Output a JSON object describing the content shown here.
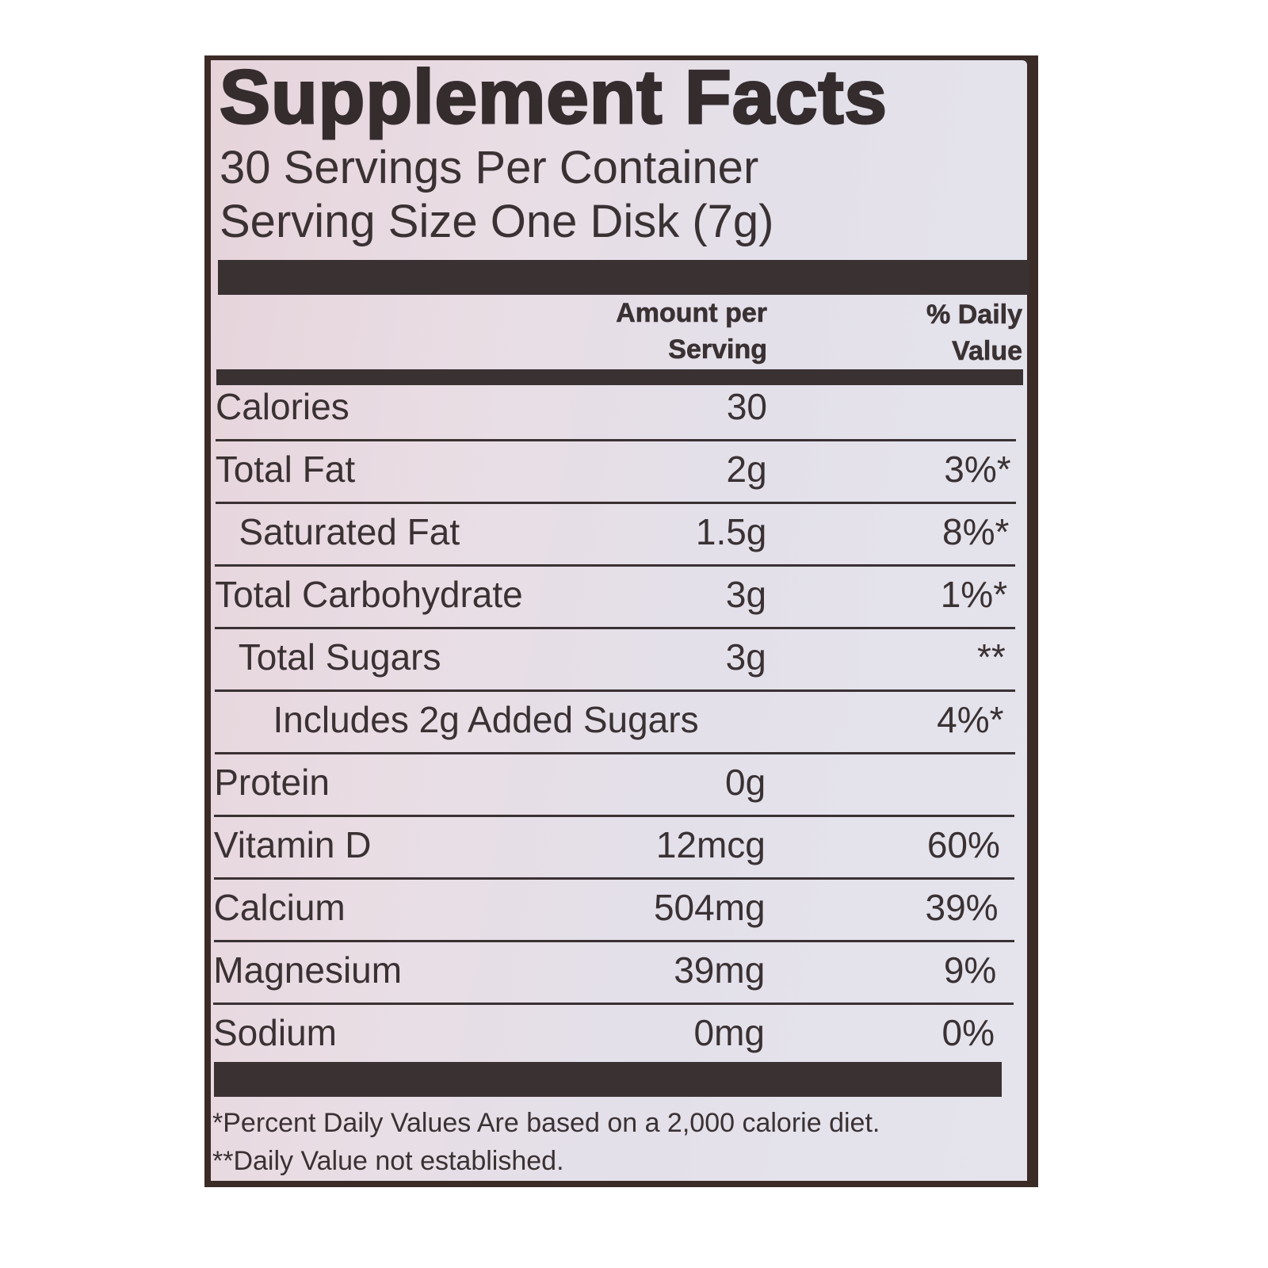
{
  "panel": {
    "title": "Supplement Facts",
    "servings_per_container": "30 Servings Per Container",
    "serving_size": "Serving Size One Disk (7g)"
  },
  "columns": {
    "amount_line1": "Amount per",
    "amount_line2": "Serving",
    "dv_line1": "% Daily",
    "dv_line2": "Value"
  },
  "rows": [
    {
      "name": "Calories",
      "amount": "30",
      "dv": ""
    },
    {
      "name": "Total Fat",
      "amount": "2g",
      "dv": "3%*"
    },
    {
      "name": "Saturated Fat",
      "amount": "1.5g",
      "dv": "8%*"
    },
    {
      "name": "Total Carbohydrate",
      "amount": "3g",
      "dv": "1%*"
    },
    {
      "name": "Total Sugars",
      "amount": "3g",
      "dv": "**"
    },
    {
      "name": "Includes 2g Added Sugars",
      "amount": "",
      "dv": "4%*"
    },
    {
      "name": "Protein",
      "amount": "0g",
      "dv": ""
    },
    {
      "name": "Vitamin D",
      "amount": "12mcg",
      "dv": "60%"
    },
    {
      "name": "Calcium",
      "amount": "504mg",
      "dv": "39%"
    },
    {
      "name": "Magnesium",
      "amount": "39mg",
      "dv": "9%"
    },
    {
      "name": "Sodium",
      "amount": "0mg",
      "dv": "0%"
    }
  ],
  "footnotes": {
    "percent_dv": "*Percent Daily Values Are based on a 2,000 calorie diet.",
    "not_established": "**Daily Value not established."
  },
  "colors": {
    "ink": "#3a3133",
    "border": "#3b2b27",
    "background": "#e5dde6"
  }
}
